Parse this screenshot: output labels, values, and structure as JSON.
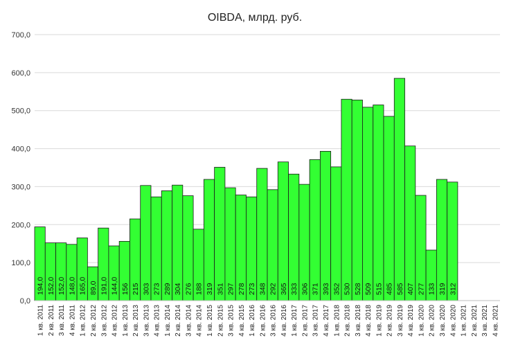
{
  "chart_data": {
    "type": "bar",
    "title": "OIBDA, млрд. руб.",
    "xlabel": "",
    "ylabel": "",
    "ylim": [
      0,
      700
    ],
    "yticks": [
      "0,0",
      "100,0",
      "200,0",
      "300,0",
      "400,0",
      "500,0",
      "600,0",
      "700,0"
    ],
    "grid": true,
    "legend": "none",
    "bar_color": "#33ff33",
    "categories": [
      "1 кв. 2011",
      "2 кв. 2011",
      "3 кв. 2011",
      "4 кв. 2011",
      "1 кв. 2012",
      "2 кв. 2012",
      "3 кв. 2012",
      "4 кв. 2012",
      "1 кв. 2013",
      "2 кв. 2013",
      "3 кв. 2013",
      "4 кв. 2013",
      "1 кв. 2014",
      "2 кв. 2014",
      "3 кв. 2014",
      "4 кв. 2014",
      "1 кв. 2015",
      "2 кв. 2015",
      "3 кв. 2015",
      "4 кв. 2015",
      "1 кв. 2016",
      "2 кв. 2016",
      "3 кв. 2016",
      "4 кв. 2016",
      "1 кв. 2017",
      "2 кв. 2017",
      "3 кв. 2017",
      "4 кв. 2017",
      "1 кв. 2018",
      "2 кв. 2018",
      "3 кв. 2018",
      "4 кв. 2018",
      "1 кв. 2019",
      "2 кв. 2019",
      "3 кв. 2019",
      "4 кв. 2019",
      "1 кв. 2020",
      "2 кв. 2020",
      "3 кв. 2020",
      "4 кв. 2020",
      "1 кв. 2021",
      "2 кв. 2021",
      "3 кв. 2021",
      "4 кв. 2021"
    ],
    "values": [
      194,
      152,
      152,
      148,
      165,
      89,
      191,
      144,
      156,
      215,
      303,
      273,
      289,
      304,
      276,
      188,
      319,
      351,
      297,
      278,
      273,
      348,
      292,
      365,
      333,
      306,
      371,
      393,
      352,
      530,
      528,
      509,
      515,
      485,
      585,
      407,
      277,
      133,
      319,
      312,
      null,
      null,
      null,
      null
    ],
    "data_labels": [
      "194,0",
      "152,0",
      "152,0",
      "148,0",
      "165,0",
      "89,0",
      "191,0",
      "144,0",
      "156",
      "215",
      "303",
      "273",
      "289",
      "304",
      "276",
      "188",
      "319",
      "351",
      "297",
      "278",
      "273",
      "348",
      "292",
      "365",
      "333",
      "306",
      "371",
      "393",
      "352",
      "530",
      "528",
      "509",
      "515",
      "485",
      "585",
      "407",
      "277",
      "133",
      "319",
      "312",
      "",
      "",
      "",
      ""
    ]
  }
}
